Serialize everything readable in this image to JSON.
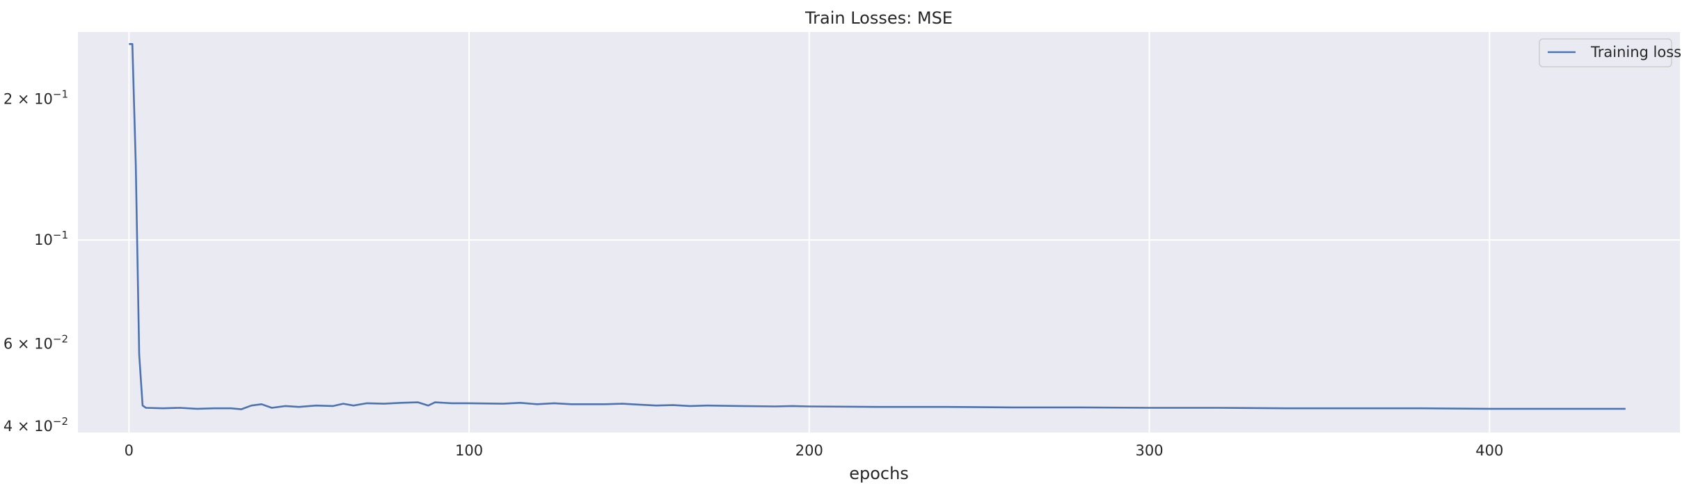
{
  "chart_data": {
    "type": "line",
    "title": "Train Losses:  MSE",
    "xlabel": "epochs",
    "ylabel": "",
    "yscale": "log",
    "xlim": [
      -15,
      456
    ],
    "ylim": [
      0.0388,
      0.278
    ],
    "grid": true,
    "legend_position": "top-right",
    "xticks": [
      {
        "value": 0,
        "label": "0"
      },
      {
        "value": 100,
        "label": "100"
      },
      {
        "value": 200,
        "label": "200"
      },
      {
        "value": 300,
        "label": "300"
      },
      {
        "value": 400,
        "label": "400"
      }
    ],
    "yticks": [
      {
        "value": 0.2,
        "mantissa": "2",
        "exponent": "−1",
        "label": "2 × 10^−1"
      },
      {
        "value": 0.1,
        "mantissa": "",
        "exponent": "−1",
        "label": "10^−1"
      },
      {
        "value": 0.06,
        "mantissa": "6",
        "exponent": "−2",
        "label": "6 × 10^−2"
      },
      {
        "value": 0.04,
        "mantissa": "4",
        "exponent": "−2",
        "label": "4 × 10^−2"
      }
    ],
    "series": [
      {
        "name": "Training loss",
        "color": "#4c72b0",
        "points": [
          [
            0,
            0.262
          ],
          [
            1,
            0.262
          ],
          [
            2,
            0.145
          ],
          [
            3,
            0.057
          ],
          [
            4,
            0.0443
          ],
          [
            5,
            0.0438
          ],
          [
            10,
            0.0437
          ],
          [
            15,
            0.0438
          ],
          [
            20,
            0.0436
          ],
          [
            25,
            0.0437
          ],
          [
            30,
            0.0437
          ],
          [
            33,
            0.0435
          ],
          [
            36,
            0.0443
          ],
          [
            39,
            0.0446
          ],
          [
            42,
            0.0438
          ],
          [
            46,
            0.0442
          ],
          [
            50,
            0.044
          ],
          [
            55,
            0.0443
          ],
          [
            60,
            0.0442
          ],
          [
            63,
            0.0447
          ],
          [
            66,
            0.0443
          ],
          [
            70,
            0.0448
          ],
          [
            75,
            0.0447
          ],
          [
            80,
            0.0449
          ],
          [
            85,
            0.045
          ],
          [
            88,
            0.0443
          ],
          [
            90,
            0.045
          ],
          [
            95,
            0.0448
          ],
          [
            100,
            0.0448
          ],
          [
            110,
            0.0447
          ],
          [
            115,
            0.0449
          ],
          [
            120,
            0.0446
          ],
          [
            125,
            0.0448
          ],
          [
            130,
            0.0446
          ],
          [
            140,
            0.0446
          ],
          [
            145,
            0.0447
          ],
          [
            150,
            0.0445
          ],
          [
            155,
            0.0443
          ],
          [
            160,
            0.0444
          ],
          [
            165,
            0.0442
          ],
          [
            170,
            0.0443
          ],
          [
            180,
            0.0442
          ],
          [
            190,
            0.0441
          ],
          [
            195,
            0.0442
          ],
          [
            200,
            0.0441
          ],
          [
            220,
            0.044
          ],
          [
            240,
            0.044
          ],
          [
            260,
            0.0439
          ],
          [
            280,
            0.0439
          ],
          [
            300,
            0.0438
          ],
          [
            320,
            0.0438
          ],
          [
            340,
            0.0437
          ],
          [
            360,
            0.0437
          ],
          [
            380,
            0.0437
          ],
          [
            400,
            0.0436
          ],
          [
            420,
            0.0436
          ],
          [
            440,
            0.0436
          ]
        ]
      }
    ]
  },
  "colors": {
    "plot_background": "#eaeaf2",
    "grid": "#ffffff",
    "line": "#4c72b0",
    "text": "#262626"
  }
}
